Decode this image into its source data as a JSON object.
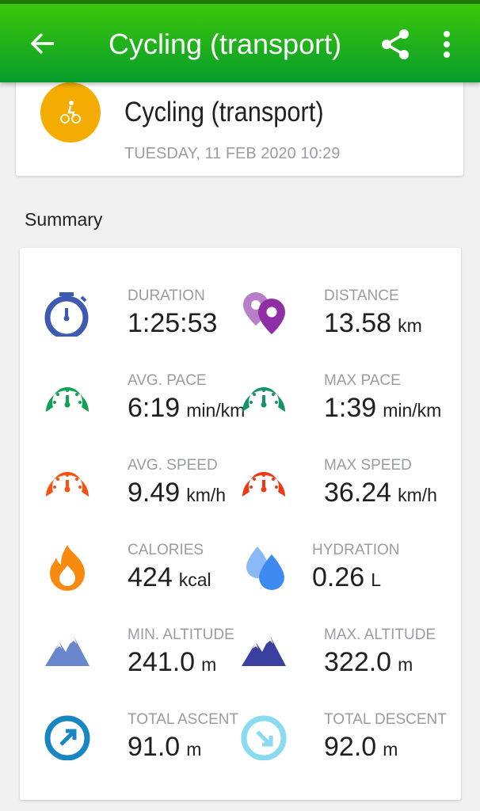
{
  "header": {
    "title": "Cycling (transport)",
    "back_icon": "arrow-left-icon",
    "share_icon": "share-icon",
    "more_icon": "more-vert-icon"
  },
  "activity": {
    "name": "Cycling (transport)",
    "date": "TUESDAY, 11 FEB 2020 10:29",
    "icon": "bicycle-icon",
    "icon_color": "#f4ac00"
  },
  "summary": {
    "title": "Summary",
    "stats": [
      {
        "label": "DURATION",
        "value": "1:25:53",
        "unit": "",
        "icon": "stopwatch-icon",
        "color": "#3d5bb0"
      },
      {
        "label": "DISTANCE",
        "value": "13.58",
        "unit": "km",
        "icon": "map-pins-icon",
        "color": "#8e2fa6"
      },
      {
        "label": "AVG. PACE",
        "value": "6:19",
        "unit": "min/km",
        "icon": "speedometer-icon",
        "color": "#11a354"
      },
      {
        "label": "MAX PACE",
        "value": "1:39",
        "unit": "min/km",
        "icon": "speedometer-icon",
        "color": "#15936a"
      },
      {
        "label": "AVG. SPEED",
        "value": "9.49",
        "unit": "km/h",
        "icon": "speedometer-icon",
        "color": "#f65212"
      },
      {
        "label": "MAX SPEED",
        "value": "36.24",
        "unit": "km/h",
        "icon": "speedometer-icon",
        "color": "#ea3b14"
      },
      {
        "label": "CALORIES",
        "value": "424",
        "unit": "kcal",
        "icon": "flame-icon",
        "color": "#f98a10"
      },
      {
        "label": "HYDRATION",
        "value": "0.26",
        "unit": "L",
        "icon": "water-drops-icon",
        "color": "#3d8af0"
      },
      {
        "label": "MIN. ALTITUDE",
        "value": "241.0",
        "unit": "m",
        "icon": "mountain-icon",
        "color": "#6a86cc"
      },
      {
        "label": "MAX. ALTITUDE",
        "value": "322.0",
        "unit": "m",
        "icon": "mountain-icon",
        "color": "#3a3fa0"
      },
      {
        "label": "TOTAL ASCENT",
        "value": "91.0",
        "unit": "m",
        "icon": "arrow-up-right-circle-icon",
        "color": "#1986c4"
      },
      {
        "label": "TOTAL DESCENT",
        "value": "92.0",
        "unit": "m",
        "icon": "arrow-down-right-circle-icon",
        "color": "#8adaf0"
      }
    ]
  }
}
